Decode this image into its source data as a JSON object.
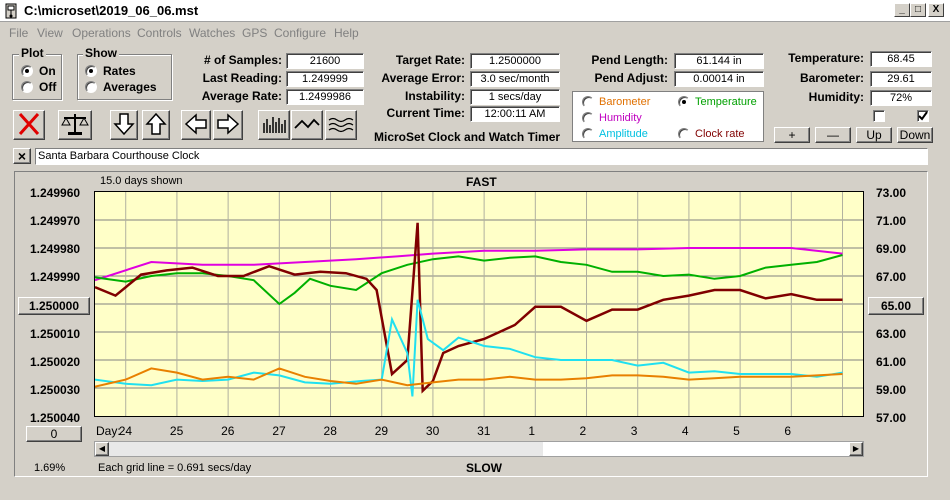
{
  "window": {
    "title": "C:\\microset\\2019_06_06.mst",
    "min": "_",
    "max": "□",
    "close": "X"
  },
  "menu": [
    "File",
    "View",
    "Operations",
    "Controls",
    "Watches",
    "GPS",
    "Configure",
    "Help"
  ],
  "plot_group": {
    "label": "Plot",
    "options": [
      "On",
      "Off"
    ],
    "selected": "On"
  },
  "show_group": {
    "label": "Show",
    "options": [
      "Rates",
      "Averages"
    ],
    "selected": "Rates"
  },
  "stats": {
    "samples_label": "# of Samples:",
    "samples": "21600",
    "last_label": "Last Reading:",
    "last": "1.249999",
    "avg_label": "Average Rate:",
    "avg": "1.2499986"
  },
  "rates": {
    "target_label": "Target Rate:",
    "target": "1.2500000",
    "error_label": "Average Error:",
    "error": "3.0 sec/month",
    "instability_label": "Instability:",
    "instability": "1 secs/day",
    "time_label": "Current Time:",
    "time": "12:00:11 AM",
    "caption": "MicroSet Clock and Watch Timer"
  },
  "pendulum": {
    "length_label": "Pend Length:",
    "length": "61.144 in",
    "adjust_label": "Pend Adjust:",
    "adjust": "0.00014 in"
  },
  "sensor_options": [
    {
      "label": "Barometer",
      "color": "#e07000",
      "selected": false
    },
    {
      "label": "Temperature",
      "color": "#00a000",
      "selected": true
    },
    {
      "label": "Humidity",
      "color": "#c000c0",
      "selected": false
    },
    {
      "label": "Amplitude",
      "color": "#00c0e0",
      "selected": false
    },
    {
      "label": "Clock rate",
      "color": "#800000",
      "selected": false
    }
  ],
  "environment": {
    "temp_label": "Temperature:",
    "temp": "68.45",
    "baro_label": "Barometer:",
    "baro": "29.61",
    "hum_label": "Humidity:",
    "hum": "72%"
  },
  "env_buttons": {
    "plus": "+",
    "minus": "—",
    "up": "Up",
    "down": "Down"
  },
  "clock_name": "Santa Barbara Courthouse Clock",
  "toolbar_close": "×",
  "plot": {
    "days_shown": "15.0 days shown",
    "fast": "FAST",
    "slow": "SLOW",
    "grid_note": "Each grid line = 0.691 secs/day",
    "scale_pct": "1.69%",
    "left_center_btn": "1.250000",
    "right_center_btn": "65.00",
    "zero_btn": "0",
    "day_label": "Day:"
  },
  "chart_data": {
    "type": "line",
    "y_left_ticks": [
      "1.249960",
      "1.249970",
      "1.249980",
      "1.249990",
      "1.250000",
      "1.250010",
      "1.250020",
      "1.250030",
      "1.250040"
    ],
    "y_right_ticks": [
      "73.00",
      "71.00",
      "69.00",
      "67.00",
      "65.00",
      "63.00",
      "61.00",
      "59.00",
      "57.00"
    ],
    "x_ticks": [
      "24",
      "25",
      "26",
      "27",
      "28",
      "29",
      "30",
      "31",
      "1",
      "2",
      "3",
      "4",
      "5",
      "6"
    ],
    "x_range": [
      23.4,
      38.4
    ],
    "y_right_range": [
      57,
      73
    ],
    "series": [
      {
        "name": "Humidity",
        "color": "#e000e0",
        "values": [
          [
            23.4,
            66.7
          ],
          [
            24.5,
            68.0
          ],
          [
            25.5,
            67.8
          ],
          [
            26.5,
            67.8
          ],
          [
            27.5,
            68.0
          ],
          [
            28.5,
            68.2
          ],
          [
            29.3,
            68.4
          ],
          [
            30.0,
            68.6
          ],
          [
            31.0,
            68.8
          ],
          [
            32.0,
            68.8
          ],
          [
            33.0,
            68.9
          ],
          [
            34.0,
            68.9
          ],
          [
            35.0,
            69.0
          ],
          [
            36.0,
            69.0
          ],
          [
            37.0,
            69.0
          ],
          [
            38.0,
            68.6
          ]
        ]
      },
      {
        "name": "Temperature",
        "color": "#00b000",
        "values": [
          [
            23.4,
            66.9
          ],
          [
            24.0,
            66.6
          ],
          [
            24.5,
            67.0
          ],
          [
            25.0,
            67.2
          ],
          [
            25.5,
            67.2
          ],
          [
            26.0,
            67.0
          ],
          [
            26.5,
            66.7
          ],
          [
            27.0,
            65.0
          ],
          [
            27.3,
            65.8
          ],
          [
            27.6,
            66.8
          ],
          [
            28.0,
            66.3
          ],
          [
            28.5,
            66.0
          ],
          [
            29.0,
            67.2
          ],
          [
            29.5,
            67.8
          ],
          [
            30.0,
            68.2
          ],
          [
            30.5,
            68.4
          ],
          [
            31.0,
            68.1
          ],
          [
            31.5,
            68.3
          ],
          [
            32.0,
            68.4
          ],
          [
            32.5,
            68.0
          ],
          [
            33.0,
            67.8
          ],
          [
            33.5,
            67.3
          ],
          [
            34.0,
            67.3
          ],
          [
            34.5,
            67.0
          ],
          [
            35.0,
            67.1
          ],
          [
            35.5,
            66.8
          ],
          [
            36.0,
            67.0
          ],
          [
            36.5,
            67.6
          ],
          [
            37.0,
            67.8
          ],
          [
            37.5,
            68.0
          ],
          [
            38.0,
            68.5
          ]
        ]
      },
      {
        "name": "Clock rate",
        "color": "#800000",
        "values": [
          [
            23.4,
            66.2
          ],
          [
            23.8,
            65.6
          ],
          [
            24.3,
            67.1
          ],
          [
            24.8,
            67.4
          ],
          [
            25.3,
            67.6
          ],
          [
            25.8,
            67.0
          ],
          [
            26.3,
            67.0
          ],
          [
            26.8,
            67.7
          ],
          [
            27.3,
            67.1
          ],
          [
            27.8,
            67.3
          ],
          [
            28.3,
            67.2
          ],
          [
            28.7,
            66.8
          ],
          [
            28.9,
            66.0
          ],
          [
            29.2,
            60.0
          ],
          [
            29.5,
            61.0
          ],
          [
            29.7,
            70.8
          ],
          [
            29.8,
            58.8
          ],
          [
            30.0,
            59.5
          ],
          [
            30.2,
            61.5
          ],
          [
            30.5,
            62.0
          ],
          [
            31.0,
            62.5
          ],
          [
            31.3,
            63.0
          ],
          [
            31.6,
            63.5
          ],
          [
            32.0,
            64.8
          ],
          [
            32.5,
            64.8
          ],
          [
            33.0,
            63.8
          ],
          [
            33.5,
            64.6
          ],
          [
            34.0,
            64.6
          ],
          [
            34.5,
            65.3
          ],
          [
            35.0,
            65.6
          ],
          [
            35.5,
            66.0
          ],
          [
            36.0,
            66.0
          ],
          [
            36.5,
            65.4
          ],
          [
            37.0,
            65.7
          ],
          [
            37.5,
            65.3
          ],
          [
            38.0,
            65.3
          ]
        ]
      },
      {
        "name": "Amplitude",
        "color": "#20e0f0",
        "values": [
          [
            23.4,
            59.6
          ],
          [
            24.0,
            59.3
          ],
          [
            24.5,
            59.2
          ],
          [
            25.0,
            59.6
          ],
          [
            25.5,
            59.5
          ],
          [
            26.0,
            59.6
          ],
          [
            26.5,
            60.1
          ],
          [
            27.0,
            59.9
          ],
          [
            27.5,
            59.4
          ],
          [
            28.0,
            59.3
          ],
          [
            28.6,
            59.5
          ],
          [
            29.0,
            59.6
          ],
          [
            29.2,
            63.9
          ],
          [
            29.5,
            61.5
          ],
          [
            29.6,
            58.4
          ],
          [
            29.7,
            65.3
          ],
          [
            29.9,
            62.5
          ],
          [
            30.2,
            61.7
          ],
          [
            30.5,
            62.6
          ],
          [
            31.0,
            62.0
          ],
          [
            31.5,
            61.8
          ],
          [
            32.0,
            61.2
          ],
          [
            32.5,
            61.0
          ],
          [
            33.0,
            61.0
          ],
          [
            33.5,
            61.0
          ],
          [
            34.0,
            60.6
          ],
          [
            34.5,
            60.8
          ],
          [
            35.0,
            60.1
          ],
          [
            35.5,
            60.2
          ],
          [
            36.0,
            60.0
          ],
          [
            36.5,
            60.0
          ],
          [
            37.0,
            60.0
          ],
          [
            37.5,
            59.8
          ],
          [
            38.0,
            60.1
          ]
        ]
      },
      {
        "name": "Barometer",
        "color": "#e88000",
        "values": [
          [
            23.4,
            59.1
          ],
          [
            24.0,
            59.6
          ],
          [
            24.5,
            60.4
          ],
          [
            25.0,
            60.1
          ],
          [
            25.5,
            59.6
          ],
          [
            26.0,
            59.8
          ],
          [
            26.5,
            59.6
          ],
          [
            27.0,
            60.4
          ],
          [
            27.5,
            59.8
          ],
          [
            28.0,
            59.5
          ],
          [
            28.5,
            59.3
          ],
          [
            29.0,
            59.6
          ],
          [
            29.5,
            59.2
          ],
          [
            30.0,
            59.4
          ],
          [
            30.5,
            59.6
          ],
          [
            31.0,
            59.6
          ],
          [
            31.5,
            59.8
          ],
          [
            32.0,
            59.6
          ],
          [
            32.5,
            59.6
          ],
          [
            33.0,
            59.7
          ],
          [
            33.5,
            59.9
          ],
          [
            34.0,
            59.9
          ],
          [
            34.5,
            59.8
          ],
          [
            35.0,
            59.6
          ],
          [
            35.5,
            59.7
          ],
          [
            36.0,
            59.8
          ],
          [
            36.5,
            59.8
          ],
          [
            37.0,
            59.8
          ],
          [
            37.5,
            59.9
          ],
          [
            38.0,
            60.0
          ]
        ]
      }
    ]
  }
}
